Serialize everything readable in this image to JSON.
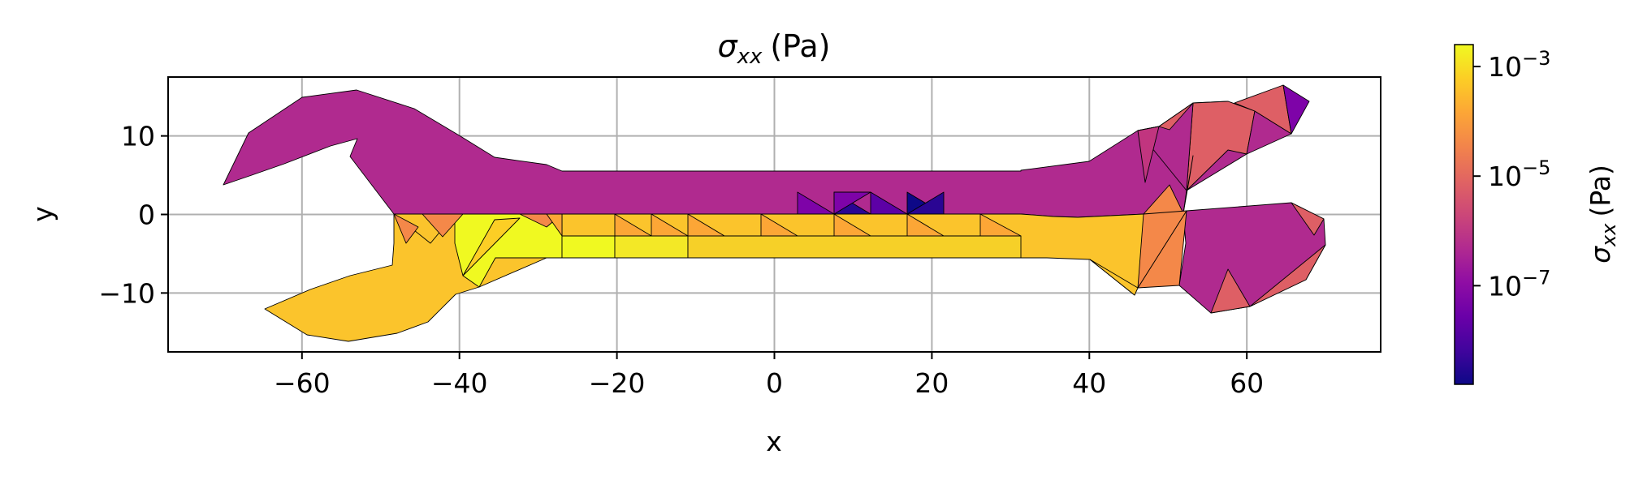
{
  "chart_data": {
    "type": "heatmap",
    "plot_kind": "triangular-mesh (tripcolor)",
    "title": "σxx (Pa)",
    "title_parts": {
      "symbol": "σ",
      "subscript": "xx",
      "unit": "(Pa)"
    },
    "xlabel": "x",
    "ylabel": "y",
    "xlim": [
      -77,
      77
    ],
    "ylim": [
      -17.5,
      17.5
    ],
    "x_ticks": [
      -60,
      -40,
      -20,
      0,
      20,
      40,
      60
    ],
    "x_tick_labels": [
      "−60",
      "−40",
      "−20",
      "0",
      "20",
      "40",
      "60"
    ],
    "y_ticks": [
      10,
      0,
      -10
    ],
    "y_tick_labels": [
      "10",
      "0",
      "−10"
    ],
    "grid": true,
    "colormap": "plasma",
    "colorbar": {
      "label": "σxx (Pa)",
      "label_parts": {
        "symbol": "σ",
        "subscript": "xx",
        "unit": "(Pa)"
      },
      "scale": "log",
      "range_log10": [
        -8.8,
        -2.6
      ],
      "ticks_log10": [
        -3,
        -5,
        -7
      ],
      "tick_labels": [
        {
          "base": "10",
          "exponent": "−3"
        },
        {
          "base": "10",
          "exponent": "−5"
        },
        {
          "base": "10",
          "exponent": "−7"
        }
      ]
    },
    "regions": [
      {
        "name": "upper handle and upper half of shaft",
        "value_log10": -6.0,
        "color": "#b02a8f"
      },
      {
        "name": "lower half of shaft and lower left jaw",
        "value_log10": -3.2,
        "color": "#fbc42c"
      },
      {
        "name": "centre of shaft (bottom row)",
        "value_log10": -2.7,
        "color": "#f0f921"
      },
      {
        "name": "right jaws",
        "value_log10": -4.8,
        "color": "#de5f65"
      },
      {
        "name": "right jaw root",
        "value_log10": -4.0,
        "color": "#f48849"
      },
      {
        "name": "minimum near x≈10–18, y≈0–3",
        "value_log10": -8.4,
        "color": "#2a0593"
      }
    ]
  }
}
